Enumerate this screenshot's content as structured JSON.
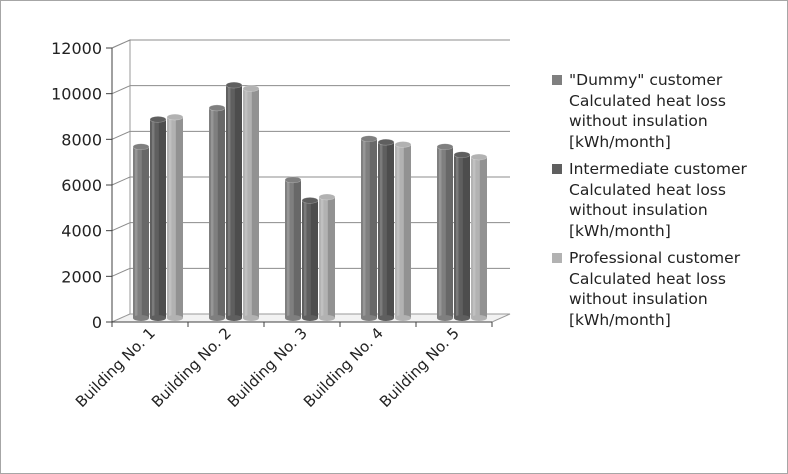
{
  "chart_data": {
    "type": "bar",
    "categories": [
      "Building No. 1",
      "Building No. 2",
      "Building No. 3",
      "Building No. 4",
      "Building No. 5"
    ],
    "series": [
      {
        "name": "\"Dummy\" customer Calculated heat loss without insulation [kWh/month]",
        "values": [
          7500,
          9200,
          6050,
          7850,
          7500
        ],
        "color": "#7f7f7f"
      },
      {
        "name": "Intermediate customer Calculated heat loss without insulation [kWh/month]",
        "values": [
          8700,
          10200,
          5150,
          7700,
          7150
        ],
        "color": "#5f5f5f"
      },
      {
        "name": "Professional customer Calculated heat loss without insulation [kWh/month]",
        "values": [
          8800,
          10050,
          5300,
          7600,
          7050
        ],
        "color": "#b2b2b2"
      }
    ],
    "y_ticks": [
      "0",
      "2000",
      "4000",
      "6000",
      "8000",
      "10000",
      "12000"
    ],
    "ylim": [
      0,
      12000
    ],
    "grid": true,
    "style": "3d-cylinder",
    "legend_position": "right"
  }
}
